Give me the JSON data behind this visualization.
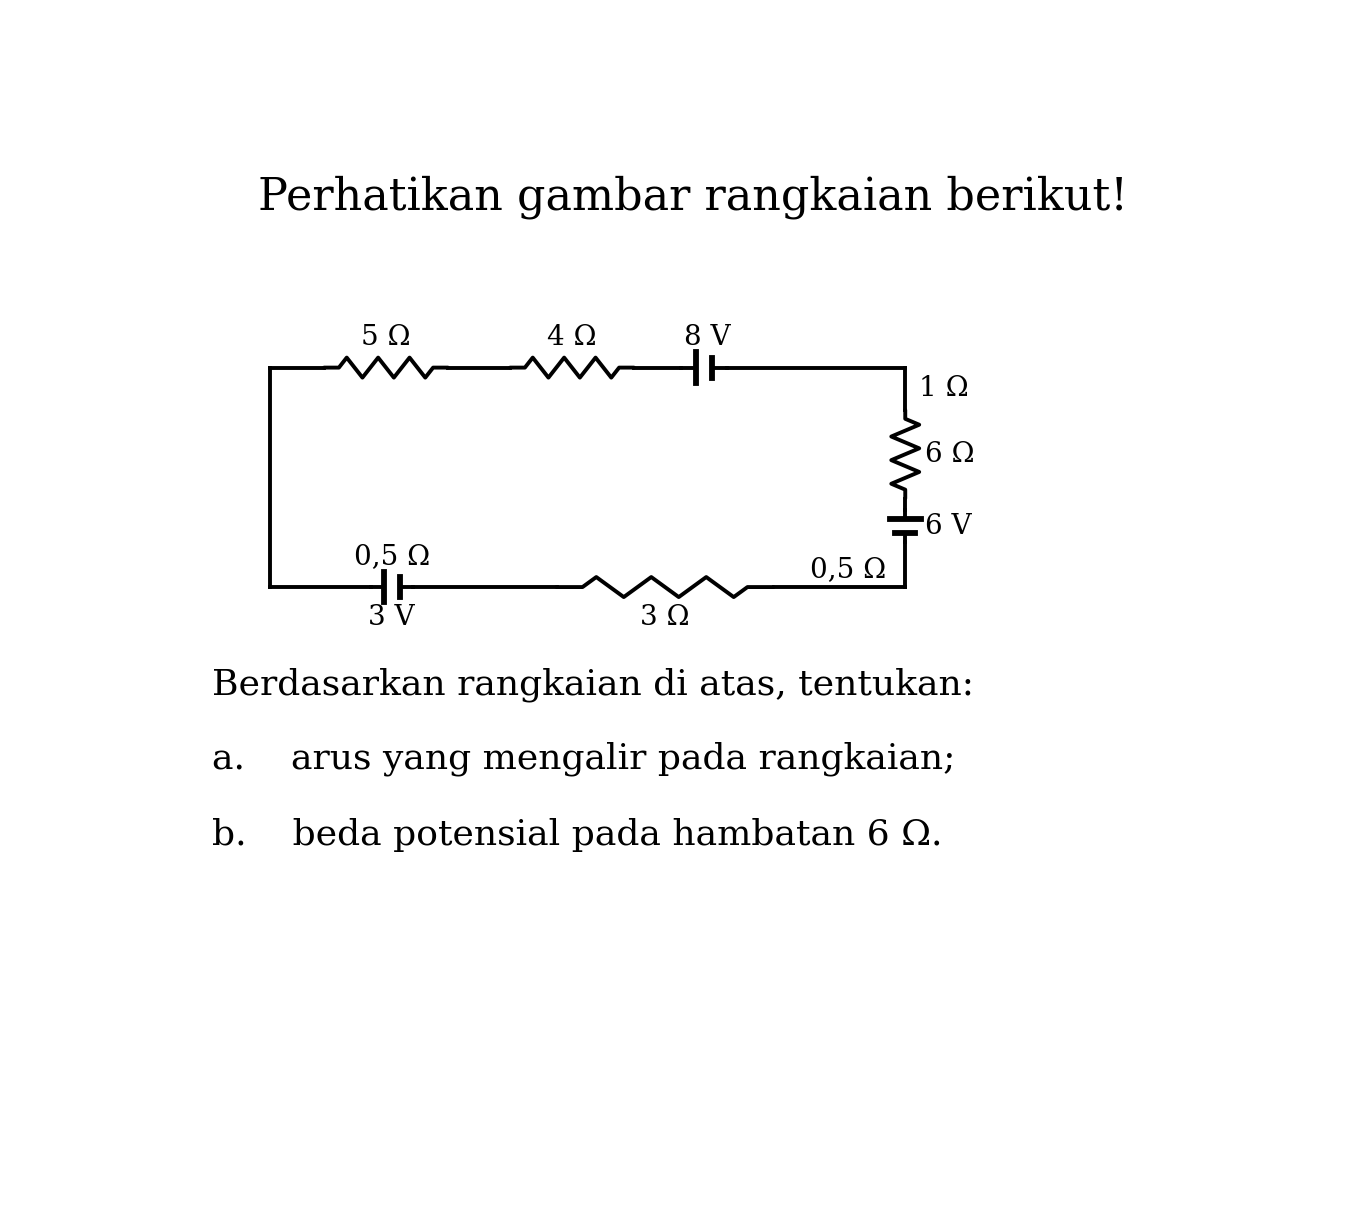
{
  "title": "Perhatikan gambar rangkaian berikut!",
  "title_fontsize": 32,
  "question_text": "Berdasarkan rangkaian di atas, tentukan:",
  "question_a": "a.    arus yang mengalir pada rangkaian;",
  "question_b": "b.    beda potensial pada hambatan 6 Ω.",
  "question_fontsize": 26,
  "background_color": "#ffffff",
  "line_color": "#000000",
  "line_width": 2.8,
  "labels": {
    "R1": "5 Ω",
    "R2": "4 Ω",
    "V1": "8 V",
    "R3": "1 Ω",
    "R4": "6 Ω",
    "V2": "6 V",
    "R5_bottom": "0,5 Ω",
    "V3": "3 V",
    "R6_right": "0,5 Ω",
    "R7": "3 Ω"
  }
}
